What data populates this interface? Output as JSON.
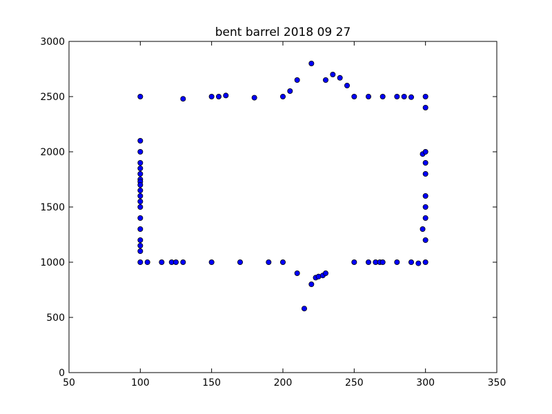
{
  "chart_data": {
    "type": "scatter",
    "title": "bent barrel 2018 09 27",
    "xlabel": "",
    "ylabel": "",
    "xlim": [
      50,
      350
    ],
    "ylim": [
      0,
      3000
    ],
    "xticks": [
      50,
      100,
      150,
      200,
      250,
      300,
      350
    ],
    "yticks": [
      0,
      500,
      1000,
      1500,
      2000,
      2500,
      3000
    ],
    "xtick_labels": [
      "50",
      "100",
      "150",
      "200",
      "250",
      "300",
      "350"
    ],
    "ytick_labels": [
      "0",
      "500",
      "1000",
      "1500",
      "2000",
      "2500",
      "3000"
    ],
    "grid": false,
    "marker_color": "#0000ff",
    "edge_color": "#000000",
    "points": [
      [
        100,
        2500
      ],
      [
        100,
        2100
      ],
      [
        100,
        2000
      ],
      [
        100,
        1900
      ],
      [
        100,
        1850
      ],
      [
        100,
        1800
      ],
      [
        100,
        1750
      ],
      [
        100,
        1730
      ],
      [
        100,
        1700
      ],
      [
        100,
        1650
      ],
      [
        100,
        1600
      ],
      [
        100,
        1550
      ],
      [
        100,
        1500
      ],
      [
        100,
        1400
      ],
      [
        100,
        1300
      ],
      [
        100,
        1200
      ],
      [
        100,
        1150
      ],
      [
        100,
        1100
      ],
      [
        100,
        1000
      ],
      [
        105,
        1000
      ],
      [
        115,
        1000
      ],
      [
        122,
        1000
      ],
      [
        125,
        1000
      ],
      [
        130,
        1000
      ],
      [
        150,
        1000
      ],
      [
        170,
        1000
      ],
      [
        190,
        1000
      ],
      [
        200,
        1000
      ],
      [
        210,
        900
      ],
      [
        215,
        580
      ],
      [
        220,
        800
      ],
      [
        223,
        860
      ],
      [
        225,
        870
      ],
      [
        228,
        880
      ],
      [
        230,
        900
      ],
      [
        250,
        1000
      ],
      [
        260,
        1000
      ],
      [
        265,
        1000
      ],
      [
        268,
        1000
      ],
      [
        270,
        1000
      ],
      [
        280,
        1000
      ],
      [
        290,
        1000
      ],
      [
        295,
        990
      ],
      [
        300,
        1000
      ],
      [
        300,
        1200
      ],
      [
        298,
        1300
      ],
      [
        300,
        1400
      ],
      [
        300,
        1500
      ],
      [
        300,
        1600
      ],
      [
        300,
        1800
      ],
      [
        300,
        1900
      ],
      [
        298,
        1980
      ],
      [
        300,
        2000
      ],
      [
        300,
        2400
      ],
      [
        300,
        2500
      ],
      [
        290,
        2495
      ],
      [
        285,
        2500
      ],
      [
        280,
        2500
      ],
      [
        270,
        2500
      ],
      [
        260,
        2500
      ],
      [
        250,
        2500
      ],
      [
        245,
        2600
      ],
      [
        240,
        2670
      ],
      [
        235,
        2700
      ],
      [
        230,
        2650
      ],
      [
        220,
        2800
      ],
      [
        210,
        2650
      ],
      [
        205,
        2550
      ],
      [
        200,
        2500
      ],
      [
        180,
        2490
      ],
      [
        160,
        2510
      ],
      [
        155,
        2500
      ],
      [
        150,
        2500
      ],
      [
        130,
        2480
      ]
    ]
  }
}
